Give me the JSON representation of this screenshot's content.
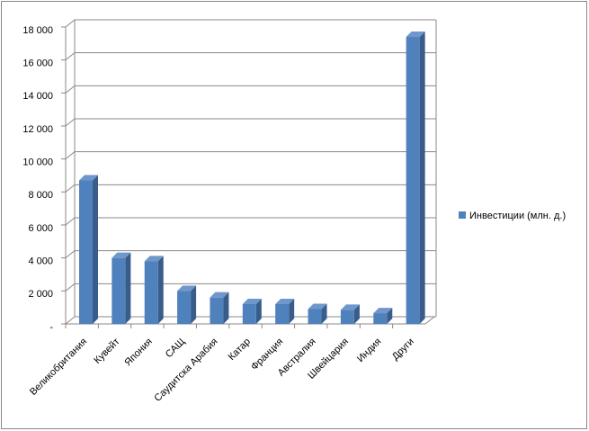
{
  "chart_data": {
    "type": "bar",
    "categories": [
      "Великобритания",
      "Кувейт",
      "Япония",
      "САЩ",
      "Саудитска Арабия",
      "Катар",
      "Франция",
      "Австралия",
      "Швейцария",
      "Индия",
      "Други"
    ],
    "series": [
      {
        "name": "Инвестиции (млн. д.)",
        "color": "#4f81bd",
        "values": [
          8700,
          4000,
          3800,
          2000,
          1600,
          1200,
          1200,
          900,
          850,
          650,
          17400
        ]
      }
    ],
    "ylim": [
      0,
      18000
    ],
    "yticks": [
      {
        "value": 0,
        "label": "-"
      },
      {
        "value": 2000,
        "label": "2 000"
      },
      {
        "value": 4000,
        "label": "4 000"
      },
      {
        "value": 6000,
        "label": "6 000"
      },
      {
        "value": 8000,
        "label": "8 000"
      },
      {
        "value": 10000,
        "label": "10 000"
      },
      {
        "value": 12000,
        "label": "12 000"
      },
      {
        "value": 14000,
        "label": "14 000"
      },
      {
        "value": 16000,
        "label": "16 000"
      },
      {
        "value": 18000,
        "label": "18 000"
      }
    ],
    "grid": true,
    "legend": "right"
  }
}
